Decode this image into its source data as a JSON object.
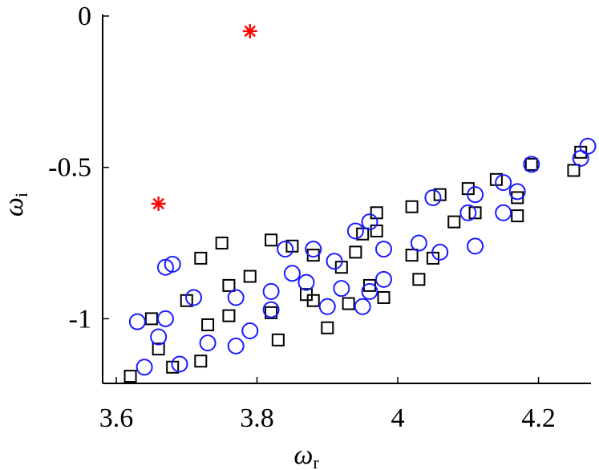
{
  "chart_data": {
    "type": "scatter",
    "xlabel": "ω",
    "xlabel_sub": "r",
    "ylabel": "ω",
    "ylabel_sub": "i",
    "xlim": [
      3.6,
      4.27
    ],
    "ylim": [
      -1.2,
      0.0
    ],
    "xticks": [
      3.6,
      3.8,
      4.0,
      4.2
    ],
    "xtick_labels": [
      "3.6",
      "3.8",
      "4",
      "4.2"
    ],
    "yticks": [
      0,
      -0.5,
      -1
    ],
    "ytick_labels": [
      "0",
      "-0.5",
      "-1"
    ],
    "grid": false,
    "legend": "none",
    "series": [
      {
        "marker": "square",
        "color": "#000000",
        "points": [
          [
            3.62,
            -1.19
          ],
          [
            3.65,
            -1.0
          ],
          [
            3.66,
            -1.1
          ],
          [
            3.68,
            -1.16
          ],
          [
            3.7,
            -0.94
          ],
          [
            3.72,
            -0.8
          ],
          [
            3.72,
            -1.14
          ],
          [
            3.73,
            -1.02
          ],
          [
            3.75,
            -0.75
          ],
          [
            3.76,
            -0.99
          ],
          [
            3.76,
            -0.89
          ],
          [
            3.79,
            -0.86
          ],
          [
            3.82,
            -0.74
          ],
          [
            3.82,
            -0.98
          ],
          [
            3.83,
            -1.07
          ],
          [
            3.85,
            -0.76
          ],
          [
            3.87,
            -0.92
          ],
          [
            3.88,
            -0.79
          ],
          [
            3.88,
            -0.94
          ],
          [
            3.9,
            -1.03
          ],
          [
            3.92,
            -0.83
          ],
          [
            3.93,
            -0.95
          ],
          [
            3.94,
            -0.78
          ],
          [
            3.95,
            -0.72
          ],
          [
            3.96,
            -0.89
          ],
          [
            3.97,
            -0.65
          ],
          [
            3.97,
            -0.71
          ],
          [
            3.98,
            -0.93
          ],
          [
            4.02,
            -0.63
          ],
          [
            4.02,
            -0.79
          ],
          [
            4.03,
            -0.87
          ],
          [
            4.05,
            -0.8
          ],
          [
            4.06,
            -0.59
          ],
          [
            4.08,
            -0.68
          ],
          [
            4.1,
            -0.57
          ],
          [
            4.11,
            -0.65
          ],
          [
            4.14,
            -0.54
          ],
          [
            4.17,
            -0.6
          ],
          [
            4.17,
            -0.66
          ],
          [
            4.19,
            -0.49
          ],
          [
            4.25,
            -0.51
          ],
          [
            4.26,
            -0.45
          ]
        ]
      },
      {
        "marker": "circle",
        "color": "#1a1aff",
        "points": [
          [
            3.63,
            -1.01
          ],
          [
            3.64,
            -1.16
          ],
          [
            3.66,
            -1.06
          ],
          [
            3.67,
            -0.83
          ],
          [
            3.67,
            -1.0
          ],
          [
            3.68,
            -0.82
          ],
          [
            3.69,
            -1.15
          ],
          [
            3.71,
            -0.93
          ],
          [
            3.73,
            -1.08
          ],
          [
            3.77,
            -1.09
          ],
          [
            3.77,
            -0.93
          ],
          [
            3.79,
            -1.04
          ],
          [
            3.82,
            -0.91
          ],
          [
            3.82,
            -0.97
          ],
          [
            3.84,
            -0.77
          ],
          [
            3.85,
            -0.85
          ],
          [
            3.87,
            -0.88
          ],
          [
            3.88,
            -0.77
          ],
          [
            3.9,
            -0.96
          ],
          [
            3.91,
            -0.81
          ],
          [
            3.92,
            -0.9
          ],
          [
            3.94,
            -0.71
          ],
          [
            3.95,
            -0.96
          ],
          [
            3.96,
            -0.68
          ],
          [
            3.96,
            -0.91
          ],
          [
            3.98,
            -0.77
          ],
          [
            3.98,
            -0.87
          ],
          [
            4.03,
            -0.75
          ],
          [
            4.05,
            -0.6
          ],
          [
            4.06,
            -0.78
          ],
          [
            4.1,
            -0.65
          ],
          [
            4.11,
            -0.59
          ],
          [
            4.11,
            -0.76
          ],
          [
            4.15,
            -0.55
          ],
          [
            4.15,
            -0.65
          ],
          [
            4.17,
            -0.58
          ],
          [
            4.19,
            -0.49
          ],
          [
            4.26,
            -0.47
          ],
          [
            4.27,
            -0.43
          ]
        ]
      },
      {
        "marker": "asterisk",
        "color": "#ff0000",
        "points": [
          [
            3.79,
            -0.05
          ],
          [
            3.66,
            -0.62
          ]
        ]
      }
    ]
  }
}
